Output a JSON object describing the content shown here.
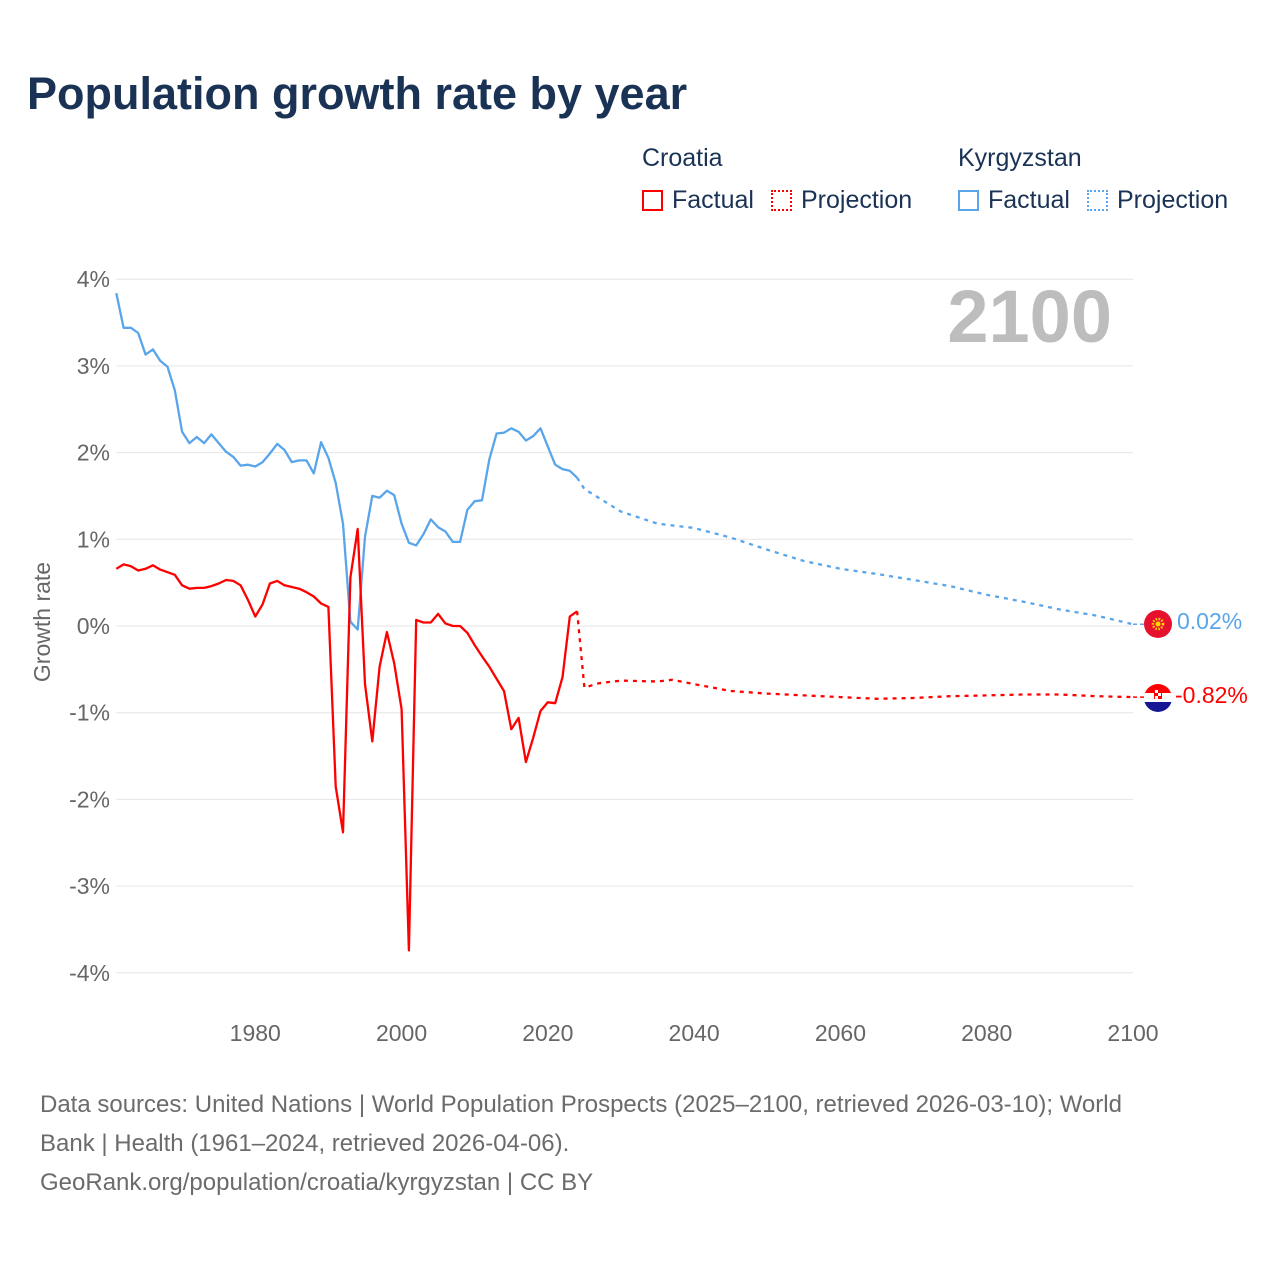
{
  "title": "Population growth rate by year",
  "legend": {
    "groups": [
      {
        "name": "Croatia",
        "factual": "Factual",
        "projection": "Projection",
        "color": "#ff0000"
      },
      {
        "name": "Kyrgyzstan",
        "factual": "Factual",
        "projection": "Projection",
        "color": "#5aa5ea"
      }
    ]
  },
  "year_watermark": "2100",
  "end_labels": {
    "kyrgyzstan": "0.02%",
    "croatia": "-0.82%"
  },
  "source": {
    "line1": "Data sources: United Nations | World Population Prospects (2025–2100, retrieved 2026-03-10); World",
    "line2": "Bank | Health (1961–2024, retrieved 2026-04-06).",
    "line3": "GeoRank.org/population/croatia/kyrgyzstan | CC BY"
  },
  "chart_data": {
    "type": "line",
    "title": "Population growth rate by year",
    "xlabel": "",
    "ylabel": "Growth rate",
    "xlim": [
      1961,
      2100
    ],
    "ylim": [
      -4,
      4
    ],
    "x_ticks": [
      "1980",
      "2000",
      "2020",
      "2040",
      "2060",
      "2080",
      "2100"
    ],
    "y_ticks": [
      "4%",
      "3%",
      "2%",
      "1%",
      "0%",
      "-1%",
      "-2%",
      "-3%",
      "-4%"
    ],
    "grid": true,
    "legend_position": "top-right",
    "series": [
      {
        "name": "Kyrgyzstan",
        "color": "#5aa5ea",
        "factual": {
          "start_year": 1961,
          "values": [
            3.84,
            3.44,
            3.44,
            3.38,
            3.13,
            3.19,
            3.06,
            2.99,
            2.72,
            2.24,
            2.11,
            2.18,
            2.11,
            2.21,
            2.11,
            2.01,
            1.95,
            1.85,
            1.86,
            1.84,
            1.89,
            1.99,
            2.1,
            2.03,
            1.89,
            1.91,
            1.91,
            1.76,
            2.12,
            1.94,
            1.65,
            1.18,
            0.05,
            -0.04,
            1.03,
            1.5,
            1.48,
            1.56,
            1.51,
            1.18,
            0.96,
            0.93,
            1.06,
            1.23,
            1.14,
            1.09,
            0.97,
            0.97,
            1.34,
            1.44,
            1.45,
            1.92,
            2.22,
            2.23,
            2.28,
            2.24,
            2.14,
            2.19,
            2.28,
            2.07,
            1.86,
            1.81,
            1.79,
            1.71
          ]
        },
        "projection": {
          "years": [
            2025,
            2030,
            2035,
            2040,
            2045,
            2050,
            2055,
            2060,
            2065,
            2070,
            2075,
            2080,
            2085,
            2090,
            2095,
            2100
          ],
          "values": [
            1.58,
            1.32,
            1.18,
            1.13,
            1.02,
            0.88,
            0.75,
            0.66,
            0.6,
            0.53,
            0.46,
            0.36,
            0.28,
            0.19,
            0.12,
            0.02
          ]
        }
      },
      {
        "name": "Croatia",
        "color": "#ff0000",
        "factual": {
          "start_year": 1961,
          "values": [
            0.66,
            0.71,
            0.69,
            0.64,
            0.66,
            0.7,
            0.65,
            0.62,
            0.59,
            0.47,
            0.43,
            0.44,
            0.44,
            0.46,
            0.49,
            0.53,
            0.52,
            0.47,
            0.3,
            0.11,
            0.25,
            0.49,
            0.52,
            0.47,
            0.45,
            0.43,
            0.39,
            0.34,
            0.26,
            0.22,
            -1.85,
            -2.38,
            0.56,
            1.12,
            -0.67,
            -1.33,
            -0.47,
            -0.07,
            -0.43,
            -0.96,
            -3.74,
            0.07,
            0.04,
            0.04,
            0.14,
            0.03,
            0.0,
            0.0,
            -0.08,
            -0.22,
            -0.35,
            -0.47,
            -0.61,
            -0.75,
            -1.19,
            -1.06,
            -1.57,
            -1.29,
            -0.98,
            -0.88,
            -0.89,
            -0.59,
            0.11,
            0.17
          ]
        },
        "projection": {
          "years": [
            2025,
            2027,
            2030,
            2035,
            2037,
            2040,
            2045,
            2050,
            2055,
            2060,
            2065,
            2070,
            2075,
            2080,
            2085,
            2090,
            2095,
            2100
          ],
          "values": [
            -0.71,
            -0.66,
            -0.63,
            -0.64,
            -0.62,
            -0.67,
            -0.75,
            -0.78,
            -0.8,
            -0.82,
            -0.84,
            -0.83,
            -0.81,
            -0.8,
            -0.79,
            -0.79,
            -0.81,
            -0.82
          ]
        }
      }
    ]
  }
}
